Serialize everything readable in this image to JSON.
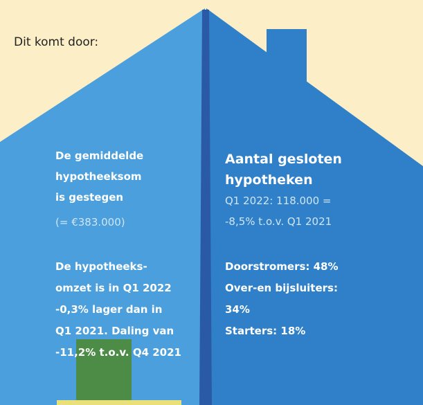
{
  "intro": "Dit komt door:",
  "left": {
    "heading_lines": [
      "De gemiddelde",
      "hypotheeksom",
      "is gestegen"
    ],
    "note": "(= €383.000)",
    "body_lines": [
      "De hypotheeks-",
      "omzet is in Q1 2022",
      "-0,3% lager dan in",
      "Q1 2021. Daling van",
      "-11,2% t.o.v. Q4 2021"
    ]
  },
  "right": {
    "heading_lines": [
      "Aantal gesloten",
      "hypotheken"
    ],
    "stat_lines": [
      "Q1 2022: 118.000 =",
      "-8,5% t.o.v. Q1 2021"
    ],
    "breakdown_lines": [
      "Doorstromers: 48%",
      "Over-en bijsluiters:",
      "34%",
      "Starters: 18%"
    ]
  }
}
